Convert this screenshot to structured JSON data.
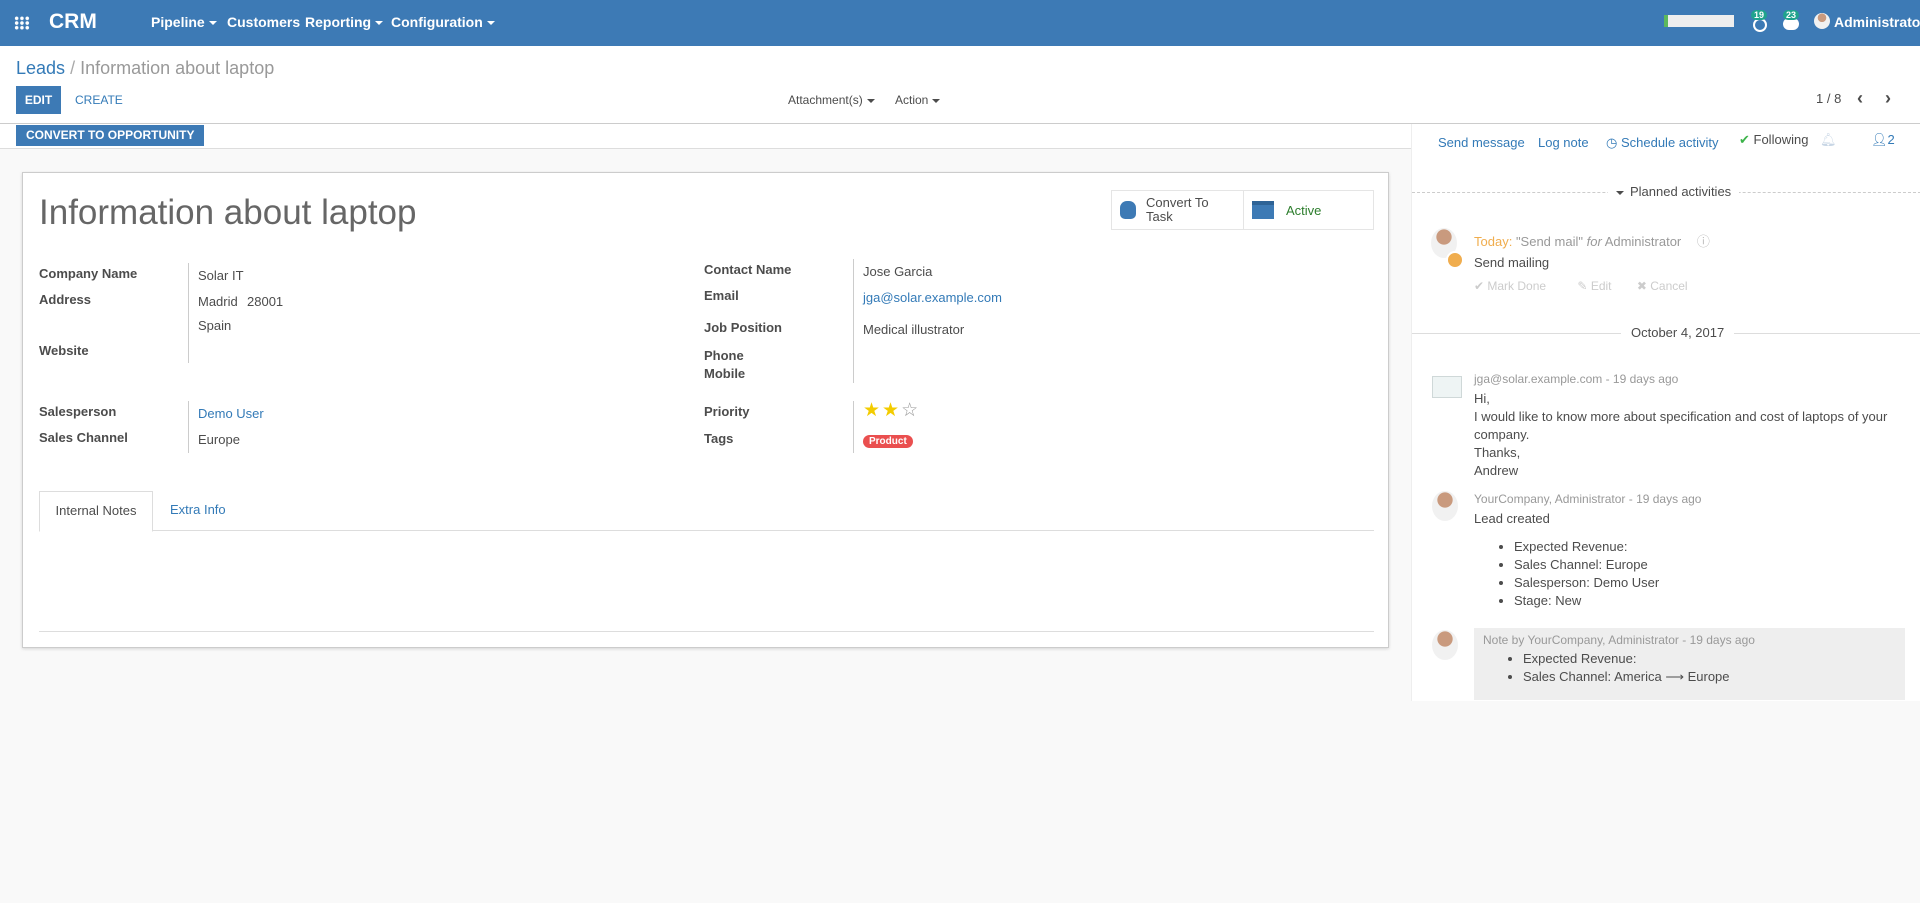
{
  "navbar": {
    "app": "CRM",
    "menus": [
      {
        "label": "Pipeline",
        "dropdown": true
      },
      {
        "label": "Customers",
        "dropdown": false
      },
      {
        "label": "Reporting",
        "dropdown": true
      },
      {
        "label": "Configuration",
        "dropdown": true
      }
    ],
    "activity_count": "19",
    "message_count": "23",
    "user": "Administrator",
    "color": "#3d7ab5"
  },
  "breadcrumb": {
    "parent": "Leads",
    "current": "Information about laptop"
  },
  "toolbar": {
    "edit": "EDIT",
    "create": "CREATE",
    "attachments": "Attachment(s)",
    "action": "Action",
    "pager": "1 / 8"
  },
  "statusbar": {
    "convert": "CONVERT TO OPPORTUNITY"
  },
  "form": {
    "title": "Information about laptop",
    "buttons": {
      "convert_task": "Convert To Task",
      "active": "Active"
    },
    "left": {
      "company_label": "Company Name",
      "company": "Solar IT",
      "address_label": "Address",
      "city": "Madrid",
      "zip": "28001",
      "country": "Spain",
      "website_label": "Website",
      "salesperson_label": "Salesperson",
      "salesperson": "Demo User",
      "channel_label": "Sales Channel",
      "channel": "Europe"
    },
    "right": {
      "contact_label": "Contact Name",
      "contact": "Jose Garcia",
      "email_label": "Email",
      "email": "jga@solar.example.com",
      "job_label": "Job Position",
      "job": "Medical illustrator",
      "phone_label": "Phone",
      "mobile_label": "Mobile",
      "priority_label": "Priority",
      "priority": 2,
      "priority_max": 3,
      "tags_label": "Tags",
      "tag": "Product",
      "tag_color": "#ea4f4f"
    },
    "tabs": [
      {
        "label": "Internal Notes",
        "active": true
      },
      {
        "label": "Extra Info",
        "active": false
      }
    ]
  },
  "chatter": {
    "send_message": "Send message",
    "log_note": "Log note",
    "schedule": "Schedule activity",
    "following": "Following",
    "followers": "2",
    "planned_title": "Planned activities",
    "activity": {
      "when": "Today:",
      "summary": "\"Send mail\"",
      "for": "for",
      "user": "Administrator",
      "note": "Send mailing",
      "mark_done": "Mark Done",
      "edit": "Edit",
      "cancel": "Cancel"
    },
    "date_sep": "October 4, 2017",
    "messages": [
      {
        "author": "jga@solar.example.com",
        "ago": "- 19 days ago",
        "lines": [
          "Hi,",
          "I would like to know more about specification and cost of laptops of your company.",
          "Thanks,",
          "Andrew"
        ]
      },
      {
        "author": "YourCompany, Administrator",
        "ago": "- 19 days ago",
        "body": "Lead created",
        "items": [
          "Expected Revenue:",
          "Sales Channel: Europe",
          "Salesperson: Demo User",
          "Stage: New"
        ]
      },
      {
        "author": "Note by YourCompany, Administrator",
        "ago": "- 19 days ago",
        "items": [
          "Expected Revenue:",
          "Sales Channel: America ⟶ Europe"
        ]
      }
    ]
  }
}
